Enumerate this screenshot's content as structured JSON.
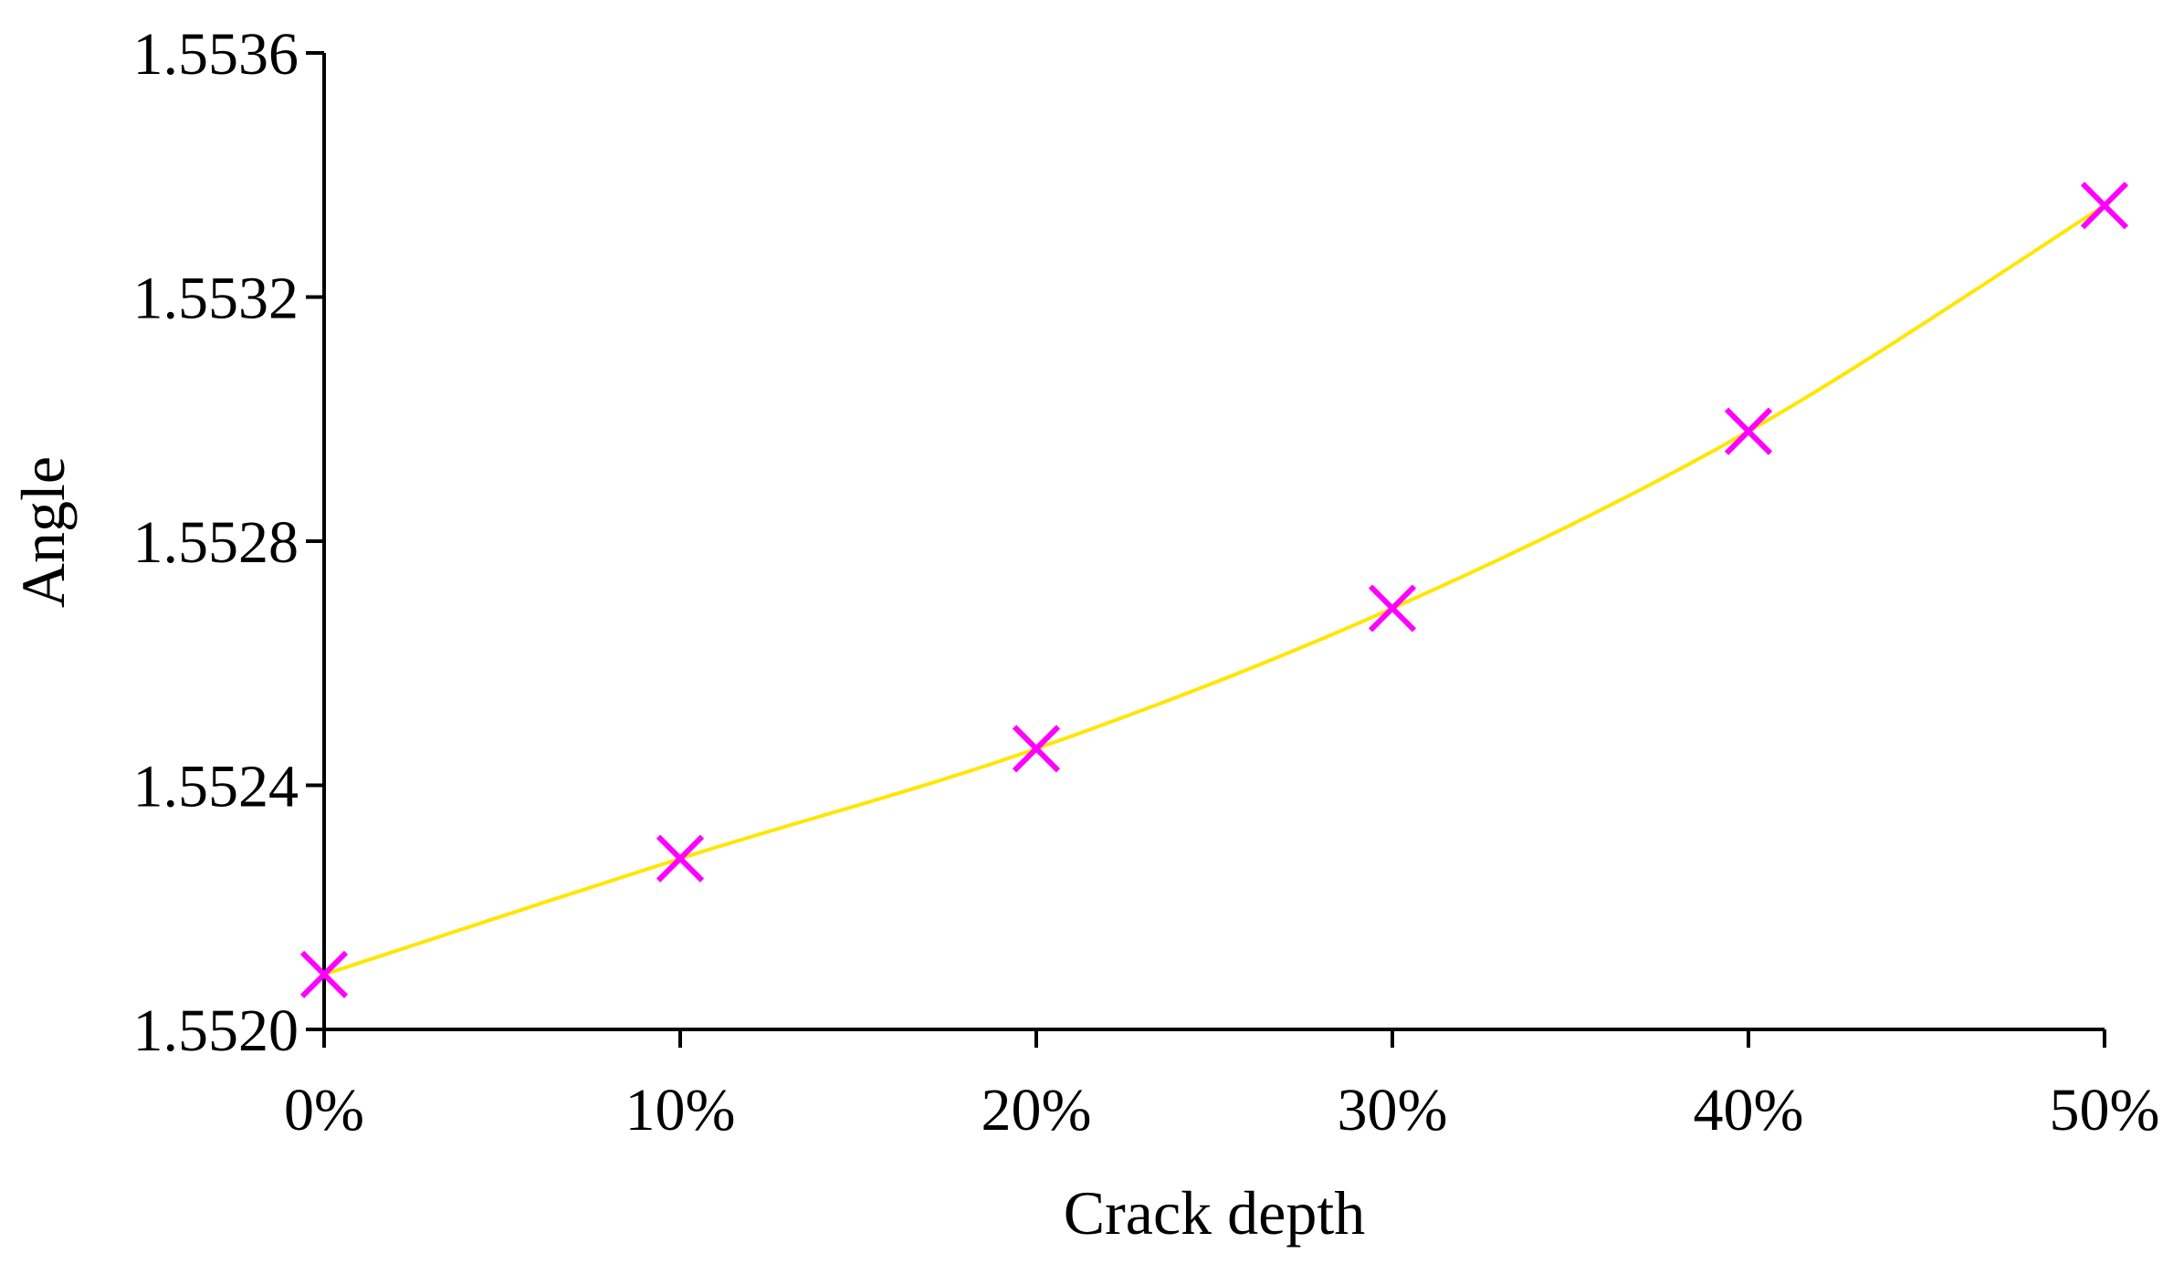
{
  "chart_data": {
    "type": "line",
    "title": "",
    "xlabel": "Crack depth",
    "ylabel": "Angle",
    "categories": [
      "0%",
      "10%",
      "20%",
      "30%",
      "40%",
      "50%"
    ],
    "x": [
      0,
      10,
      20,
      30,
      40,
      50
    ],
    "series": [
      {
        "values": [
          1.55209,
          1.55228,
          1.55246,
          1.55269,
          1.55298,
          1.55335
        ],
        "line_color": "#ffe600",
        "marker": "x",
        "marker_color": "#ff00ff"
      }
    ],
    "xlim": [
      0,
      50
    ],
    "ylim": [
      1.552,
      1.5536
    ],
    "yticks": [
      "1.5520",
      "1.5524",
      "1.5528",
      "1.5532",
      "1.5536"
    ],
    "yticks_values": [
      1.552,
      1.5524,
      1.5528,
      1.5532,
      1.5536
    ],
    "grid": false,
    "legend": "none"
  }
}
